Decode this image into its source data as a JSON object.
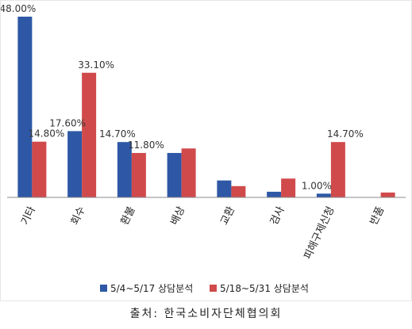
{
  "chart_data": {
    "type": "bar",
    "categories": [
      "기타",
      "회수",
      "환불",
      "배상",
      "교환",
      "검사",
      "피해구제신청",
      "반품"
    ],
    "series": [
      {
        "name": "5/4~5/17 상담분석",
        "color": "#2e58a6",
        "values": [
          48.0,
          17.6,
          14.7,
          11.8,
          4.5,
          1.5,
          1.0,
          0.0
        ]
      },
      {
        "name": "5/18~5/31 상담분석",
        "color": "#d04a4c",
        "values": [
          14.8,
          33.1,
          11.8,
          13.0,
          3.0,
          5.0,
          14.7,
          1.3
        ]
      }
    ],
    "data_labels": [
      {
        "series": 0,
        "index": 0,
        "text": "48.00%"
      },
      {
        "series": 1,
        "index": 0,
        "text": "14.80%"
      },
      {
        "series": 1,
        "index": 1,
        "text": "33.10%"
      },
      {
        "series": 0,
        "index": 1,
        "text": "17.60%"
      },
      {
        "series": 0,
        "index": 2,
        "text": "14.70%"
      },
      {
        "series": 1,
        "index": 2,
        "text": "11.80%"
      },
      {
        "series": 1,
        "index": 6,
        "text": "14.70%"
      },
      {
        "series": 0,
        "index": 6,
        "text": "1.00%"
      }
    ],
    "ylim": [
      0,
      48
    ],
    "grid": false,
    "legend_position": "bottom",
    "source": "출처: 한국소비자단체협의회"
  }
}
